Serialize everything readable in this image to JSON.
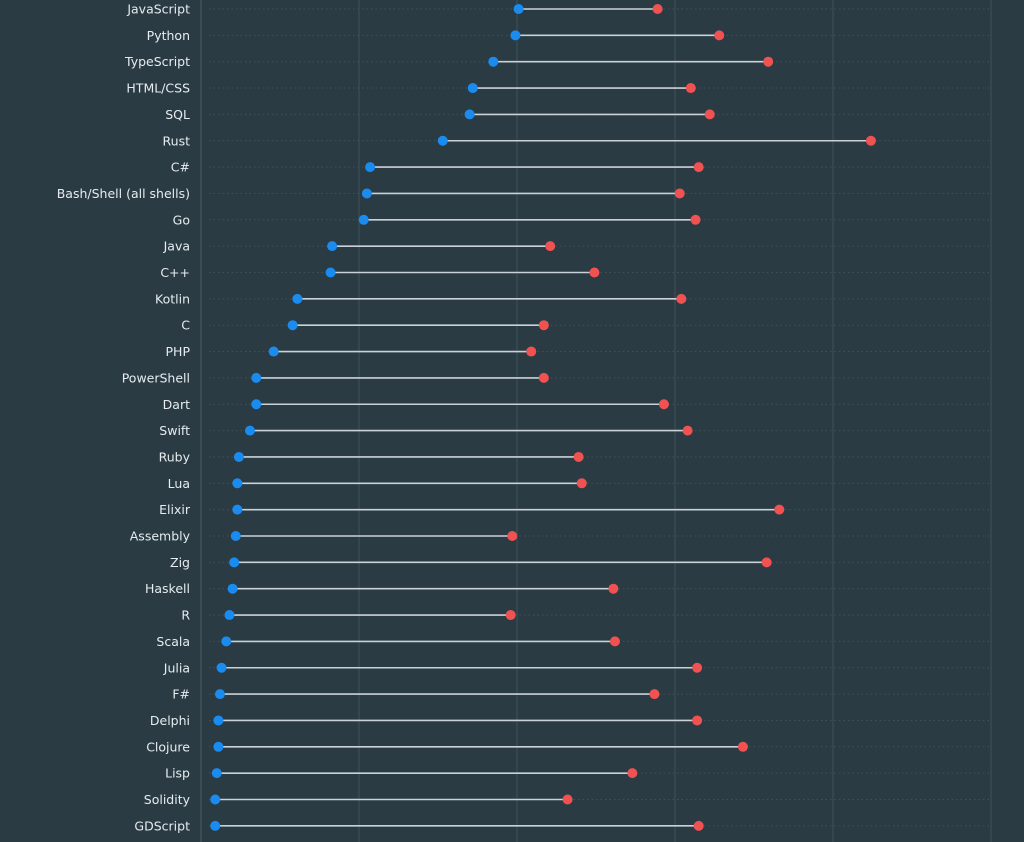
{
  "chart_data": {
    "type": "dumbbell",
    "title": "",
    "xlabel": "",
    "ylabel": "",
    "xlim": [
      0,
      50
    ],
    "x_gridlines": [
      0,
      10,
      20,
      30,
      40,
      50
    ],
    "grid": true,
    "legend": null,
    "colors": {
      "background": "#2a3b44",
      "series_start": "#1a8cf0",
      "series_end": "#f05252",
      "connector": "#c9d2d6",
      "label": "#e6ecef",
      "gridline": "#3d5058"
    },
    "series": [
      {
        "name": "start",
        "color": "#1a8cf0"
      },
      {
        "name": "end",
        "color": "#f05252"
      }
    ],
    "categories": [
      "JavaScript",
      "Python",
      "TypeScript",
      "HTML/CSS",
      "SQL",
      "Rust",
      "C#",
      "Bash/Shell (all shells)",
      "Go",
      "Java",
      "C++",
      "Kotlin",
      "C",
      "PHP",
      "PowerShell",
      "Dart",
      "Swift",
      "Ruby",
      "Lua",
      "Elixir",
      "Assembly",
      "Zig",
      "Haskell",
      "R",
      "Scala",
      "Julia",
      "F#",
      "Delphi",
      "Clojure",
      "Lisp",
      "Solidity",
      "GDScript"
    ],
    "start_values": [
      20.1,
      19.9,
      18.5,
      17.2,
      17.0,
      15.3,
      10.7,
      10.5,
      10.3,
      8.3,
      8.2,
      6.1,
      5.8,
      4.6,
      3.5,
      3.5,
      3.1,
      2.4,
      2.3,
      2.3,
      2.2,
      2.1,
      2.0,
      1.8,
      1.6,
      1.3,
      1.2,
      1.1,
      1.1,
      1.0,
      0.9,
      0.9
    ],
    "end_values": [
      28.9,
      32.8,
      35.9,
      31.0,
      32.2,
      42.4,
      31.5,
      30.3,
      31.3,
      22.1,
      24.9,
      30.4,
      21.7,
      20.9,
      21.7,
      29.3,
      30.8,
      23.9,
      24.1,
      36.6,
      19.7,
      35.8,
      26.1,
      19.6,
      26.2,
      31.4,
      28.7,
      31.4,
      34.3,
      27.3,
      23.2,
      31.5
    ]
  }
}
